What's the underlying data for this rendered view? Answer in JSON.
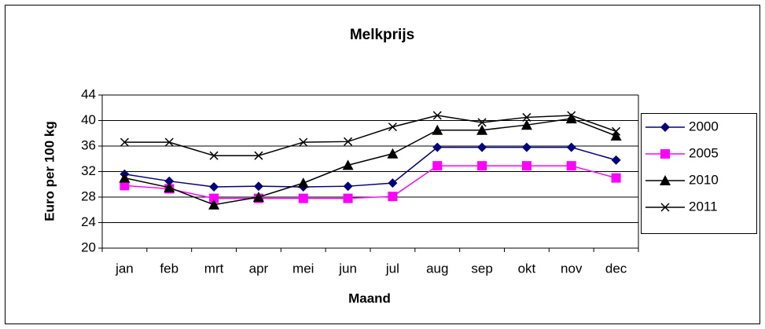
{
  "chart_data": {
    "type": "line",
    "title": "Melkprijs",
    "xlabel": "Maand",
    "ylabel": "Euro per 100 kg",
    "categories": [
      "jan",
      "feb",
      "mrt",
      "apr",
      "mei",
      "jun",
      "jul",
      "aug",
      "sep",
      "okt",
      "nov",
      "dec"
    ],
    "series": [
      {
        "name": "2000",
        "color": "#000080",
        "marker": "diamond",
        "values": [
          31.6,
          30.5,
          29.6,
          29.7,
          29.6,
          29.7,
          30.2,
          35.8,
          35.8,
          35.8,
          35.8,
          33.8
        ]
      },
      {
        "name": "2005",
        "color": "#ff00ff",
        "marker": "square",
        "values": [
          29.8,
          29.3,
          27.8,
          27.8,
          27.8,
          27.8,
          28.1,
          32.9,
          32.9,
          32.9,
          32.9,
          31
        ]
      },
      {
        "name": "2010",
        "color": "#000000",
        "marker": "triangle",
        "values": [
          31,
          29.5,
          26.8,
          28,
          30.2,
          33,
          34.8,
          38.5,
          38.5,
          39.3,
          40.3,
          37.6
        ]
      },
      {
        "name": "2011",
        "color": "#000000",
        "marker": "x",
        "values": [
          36.6,
          36.6,
          34.5,
          34.5,
          36.6,
          36.7,
          39,
          40.8,
          39.7,
          40.5,
          40.8,
          38.3
        ]
      }
    ],
    "ylim": [
      20,
      44
    ],
    "yticks": [
      20,
      24,
      28,
      32,
      36,
      40,
      44
    ],
    "grid": true,
    "legend": "right"
  }
}
